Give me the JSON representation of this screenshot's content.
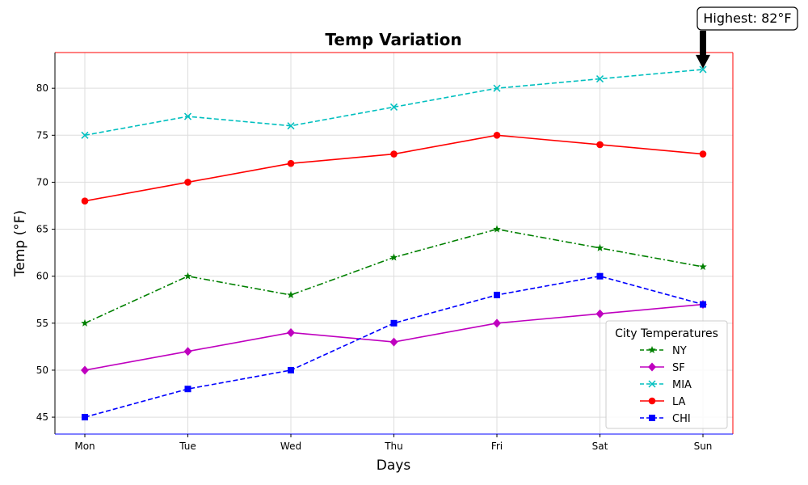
{
  "chart_data": {
    "type": "line",
    "title": "Temp Variation",
    "xlabel": "Days",
    "ylabel": "Temp (°F)",
    "categories": [
      "Mon",
      "Tue",
      "Wed",
      "Thu",
      "Fri",
      "Sat",
      "Sun"
    ],
    "ylim": [
      43.2,
      83.8
    ],
    "yticks": [
      45,
      50,
      55,
      60,
      65,
      70,
      75,
      80
    ],
    "grid": true,
    "legend": {
      "title": "City Temperatures",
      "placement": "lower-right"
    },
    "series": [
      {
        "name": "NY",
        "values": [
          55,
          60,
          58,
          62,
          65,
          63,
          61
        ],
        "color": "#008000",
        "dash": "dashdot",
        "marker": "star"
      },
      {
        "name": "SF",
        "values": [
          50,
          52,
          54,
          53,
          55,
          56,
          57
        ],
        "color": "#bf00bf",
        "dash": "solid",
        "marker": "diamond"
      },
      {
        "name": "MIA",
        "values": [
          75,
          77,
          76,
          78,
          80,
          81,
          82
        ],
        "color": "#00bfbf",
        "dash": "dashed",
        "marker": "x"
      },
      {
        "name": "LA",
        "values": [
          68,
          70,
          72,
          73,
          75,
          74,
          73
        ],
        "color": "#ff0000",
        "dash": "solid",
        "marker": "circle"
      },
      {
        "name": "CHI",
        "values": [
          45,
          48,
          50,
          55,
          58,
          60,
          57
        ],
        "color": "#0000ff",
        "dash": "dashed",
        "marker": "square"
      }
    ],
    "annotation": {
      "text": "Highest: 82°F",
      "x": "Sun",
      "y": 82
    }
  }
}
